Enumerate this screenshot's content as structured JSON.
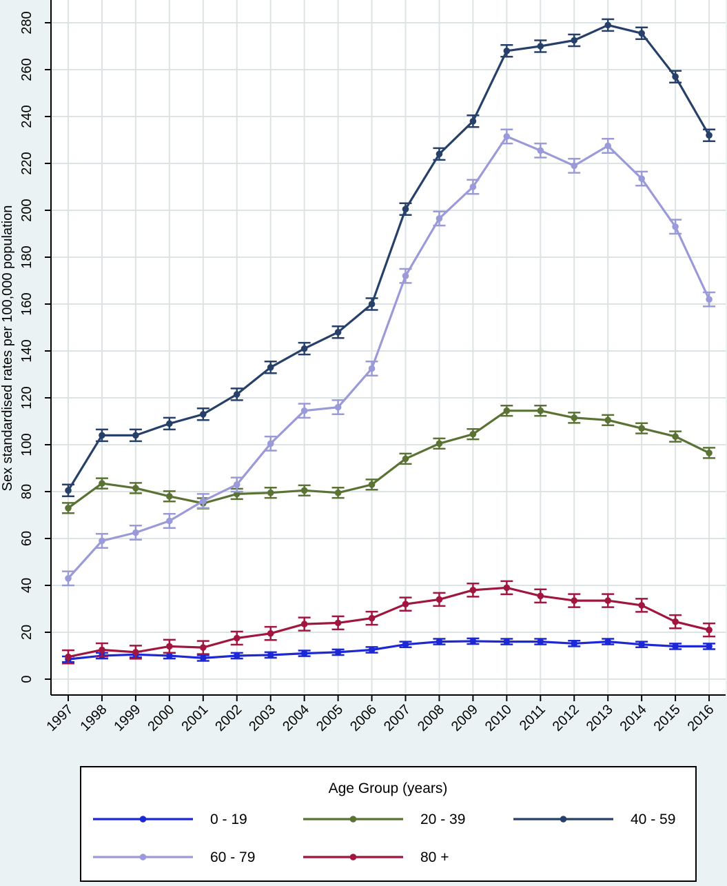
{
  "chart_data": {
    "type": "line",
    "title": "",
    "xlabel": "",
    "ylabel": "Sex standardised rates per 100,000 population",
    "ylim": [
      0,
      280
    ],
    "yticks": [
      0,
      20,
      40,
      60,
      80,
      100,
      120,
      140,
      160,
      180,
      200,
      220,
      240,
      260,
      280
    ],
    "x": [
      "1997",
      "1998",
      "1999",
      "2000",
      "2001",
      "2002",
      "2003",
      "2004",
      "2005",
      "2006",
      "2007",
      "2008",
      "2009",
      "2010",
      "2011",
      "2012",
      "2013",
      "2014",
      "2015",
      "2016"
    ],
    "grid": true,
    "error_bars": true,
    "legend": {
      "title": "Age Group (years)",
      "placement": "bottom"
    },
    "series": [
      {
        "name": "0 - 19",
        "color": "#1c28d6",
        "ci": 1.2,
        "values": [
          8.5,
          10,
          10.5,
          10,
          9,
          10,
          10.3,
          11,
          11.5,
          12.5,
          14.8,
          16,
          16.2,
          16,
          16,
          15.2,
          16,
          14.8,
          14,
          14
        ]
      },
      {
        "name": "20 - 39",
        "color": "#5a7334",
        "ci": 2.2,
        "values": [
          73,
          83.5,
          81.5,
          78,
          75,
          79,
          79.5,
          80.5,
          79.5,
          83,
          94,
          100.5,
          104.5,
          114.5,
          114.5,
          111.5,
          110.5,
          107,
          103.5,
          96.5
        ]
      },
      {
        "name": "40 - 59",
        "color": "#26406a",
        "ci": 2.5,
        "values": [
          80.5,
          104,
          104,
          109,
          113,
          121.5,
          133,
          141,
          148,
          160,
          200.5,
          224,
          238,
          268,
          270,
          272.5,
          279,
          275.5,
          257,
          232
        ]
      },
      {
        "name": "60 - 79",
        "color": "#9a9ad9",
        "ci": 3.0,
        "values": [
          43,
          59,
          62.5,
          67.5,
          76,
          83,
          100.5,
          114.5,
          116,
          132.5,
          172,
          196.5,
          210,
          231.5,
          225.5,
          219,
          227.5,
          213.5,
          193,
          162
        ]
      },
      {
        "name": "80 +",
        "color": "#a0163e",
        "ci": 2.8,
        "values": [
          9.5,
          12.5,
          11.5,
          14,
          13.5,
          17.5,
          19.5,
          23.5,
          24,
          26,
          32,
          34,
          38,
          39,
          35.5,
          33.5,
          33.5,
          31.5,
          24.5,
          21
        ]
      }
    ]
  }
}
